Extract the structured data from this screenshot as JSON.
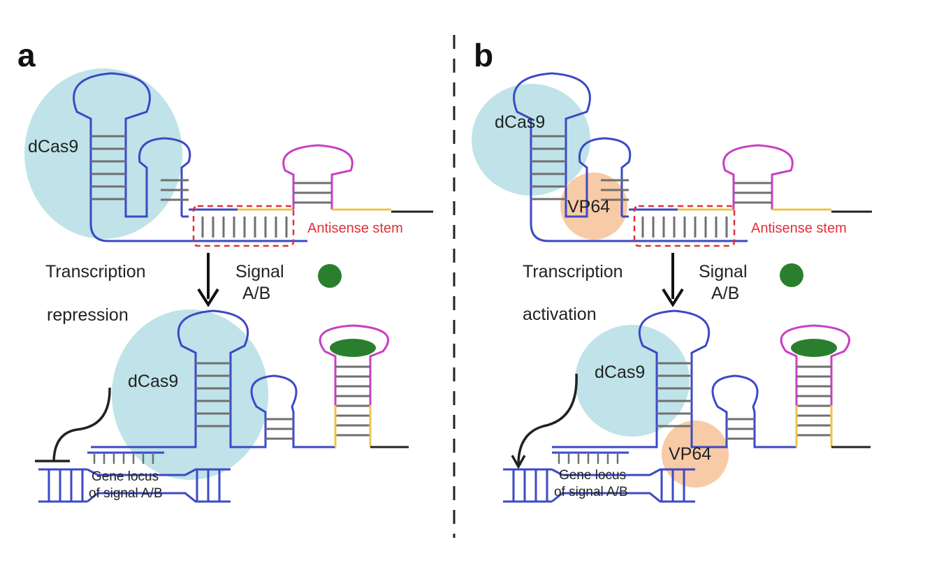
{
  "colors": {
    "blue": "#3b49c6",
    "magenta": "#c940c4",
    "yellow": "#efc54a",
    "dark": "#222222",
    "rung": "#6f6f6f",
    "dcas9_fill": "#bfe3e8",
    "vp64_fill": "#f7cba6",
    "signal": "#2a7f2e",
    "dashed_red": "#e0303a"
  },
  "panel_a": {
    "letter": "a",
    "dcas9_top": "dCas9",
    "antisense_label": "Antisense stem",
    "arrow_text_1": "Transcription",
    "arrow_text_2": "repression",
    "signal_label_1": "Signal",
    "signal_label_2": "A/B",
    "dcas9_bottom": "dCas9",
    "gene_locus_1": "Gene locus",
    "gene_locus_2": "of signal A/B"
  },
  "panel_b": {
    "letter": "b",
    "dcas9_top": "dCas9",
    "vp64_top": "VP64",
    "antisense_label": "Antisense stem",
    "arrow_text_1": "Transcription",
    "arrow_text_2": "activation",
    "signal_label_1": "Signal",
    "signal_label_2": "A/B",
    "dcas9_bottom": "dCas9",
    "vp64_bottom": "VP64",
    "gene_locus_1": "Gene locus",
    "gene_locus_2": "of signal A/B"
  }
}
